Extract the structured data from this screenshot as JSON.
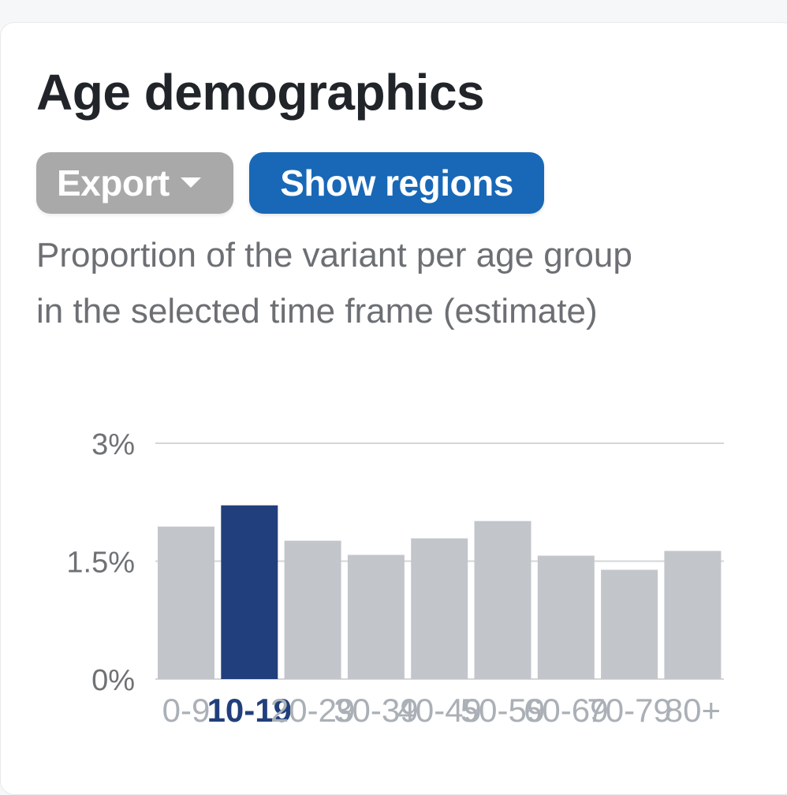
{
  "header": {
    "title": "Age demographics"
  },
  "toolbar": {
    "export_label": "Export",
    "regions_label": "Show regions"
  },
  "description": "Proportion of the variant per age group in the selected time frame (estimate)",
  "colors": {
    "bar_default": "#c2c6cb",
    "bar_selected": "#213f7c",
    "grid": "#d4d6d9",
    "tick_text": "#6f7275",
    "x_tick_text": "#aab0b6",
    "x_tick_selected": "#213f7c"
  },
  "icons": {
    "export_caret": "caret-down-icon"
  },
  "chart_data": {
    "type": "bar",
    "categories": [
      "0-9",
      "10-19",
      "20-29",
      "30-39",
      "40-49",
      "50-59",
      "60-69",
      "70-79",
      "80+"
    ],
    "values": [
      1.94,
      2.21,
      1.76,
      1.58,
      1.79,
      2.01,
      1.57,
      1.39,
      1.63
    ],
    "selected_category": "10-19",
    "ylim": [
      0,
      3
    ],
    "yticks": [
      {
        "value": 3,
        "label": "3%"
      },
      {
        "value": 1.5,
        "label": "1.5%"
      },
      {
        "value": 0,
        "label": "0%"
      }
    ],
    "unit": "%",
    "grid": true,
    "legend": "none"
  }
}
